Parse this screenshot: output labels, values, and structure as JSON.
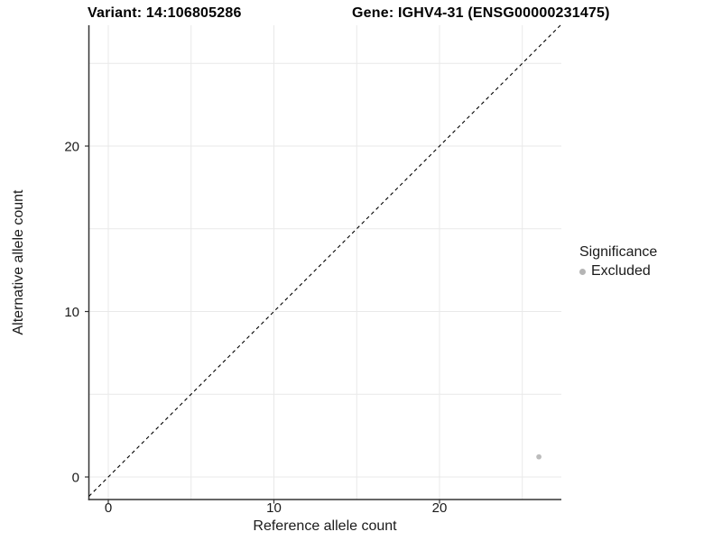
{
  "titles": {
    "variant": "Variant: 14:106805286",
    "gene": "Gene: IGHV4-31 (ENSG00000231475)"
  },
  "chart_data": {
    "type": "scatter",
    "xlabel": "Reference allele count",
    "ylabel": "Alternative allele count",
    "xlim": [
      -1.3,
      27.3
    ],
    "ylim": [
      -1.3,
      27.3
    ],
    "axis_breaks": [
      0,
      10,
      20
    ],
    "grid_breaks": [
      0,
      5,
      10,
      15,
      20,
      25
    ],
    "grid": "on",
    "identity_line": {
      "slope": 1,
      "intercept": 0,
      "style": "dashed",
      "color": "#000000"
    },
    "series": [
      {
        "name": "Excluded",
        "color": "#bcbcbc",
        "points": [
          {
            "x": 26,
            "y": 1
          }
        ]
      }
    ],
    "legend": {
      "title": "Significance",
      "position": "right",
      "items": [
        {
          "label": "Excluded",
          "color": "#b5b5b5"
        }
      ]
    }
  },
  "colors": {
    "background": "#ffffff",
    "gridline": "#e9e9e9",
    "axis_line": "#333333",
    "tick": "#333333",
    "tick_text": "#1a1a1a"
  }
}
